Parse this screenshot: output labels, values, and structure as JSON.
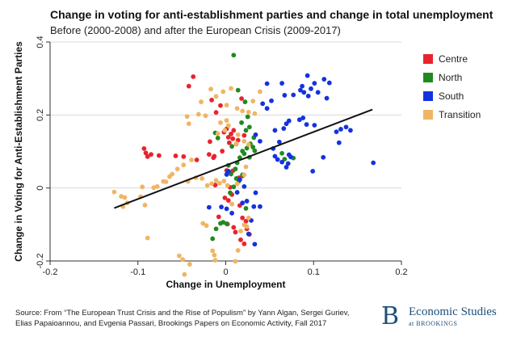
{
  "header": {
    "title": "Change in voting for anti-establishment parties and change in total unemployment",
    "subtitle": "Before (2000-2008) and after the European Crisis (2009-2017)"
  },
  "footer": {
    "source_line1": "Source: From “The European Trust Crisis and the Rise of Populism” by Yann Algan, Sergei Guriev,",
    "source_line2": "Elias Papaioannou, and Evgenia Passari, Brookings Papers on Economic Activity, Fall 2017",
    "brand_mark": "B",
    "brand_name": "Economic Studies",
    "brand_sub": "at BROOKINGS"
  },
  "chart_data": {
    "type": "scatter",
    "xlabel": "Change in Unemployment",
    "ylabel": "Change in Voting for Anti-Establishment Parties",
    "xlim": [
      -0.2,
      0.2
    ],
    "ylim": [
      -0.2,
      0.4
    ],
    "xticks": [
      "-0.2",
      "-0.1",
      "0",
      "0.1",
      "0.2"
    ],
    "yticks": [
      "-0.2",
      "0",
      "0.2",
      "0.4"
    ],
    "grid": true,
    "legend_position": "right",
    "fit_line": {
      "x": [
        -0.127,
        0.167
      ],
      "y": [
        -0.055,
        0.215
      ],
      "color": "#111111"
    },
    "series": [
      {
        "name": "Centre",
        "color": "#e8232e",
        "points": [
          [
            -0.093,
            0.108
          ],
          [
            -0.091,
            0.096
          ],
          [
            -0.089,
            0.086
          ],
          [
            -0.085,
            0.092
          ],
          [
            -0.076,
            0.089
          ],
          [
            -0.057,
            0.088
          ],
          [
            -0.048,
            0.086
          ],
          [
            -0.033,
            0.077
          ],
          [
            -0.019,
            0.092
          ],
          [
            -0.018,
            0.127
          ],
          [
            -0.014,
            0.083
          ],
          [
            -0.013,
            0.087
          ],
          [
            -0.037,
            0.305
          ],
          [
            -0.042,
            0.279
          ],
          [
            -0.016,
            0.241
          ],
          [
            -0.011,
            0.207
          ],
          [
            -0.006,
            0.226
          ],
          [
            -0.002,
            0.153
          ],
          [
            0.001,
            0.162
          ],
          [
            0.003,
            0.139
          ],
          [
            0.004,
            0.124
          ],
          [
            0.006,
            0.148
          ],
          [
            0.008,
            0.135
          ],
          [
            0.009,
            0.158
          ],
          [
            0.012,
            0.121
          ],
          [
            0.014,
            0.131
          ],
          [
            0.018,
            0.245
          ],
          [
            0.021,
            0.144
          ],
          [
            0.008,
            0.047
          ],
          [
            0.015,
            0.028
          ],
          [
            0.019,
            0.033
          ],
          [
            -0.001,
            -0.027
          ],
          [
            0.003,
            -0.034
          ],
          [
            0.007,
            -0.018
          ],
          [
            0.002,
            -0.099
          ],
          [
            0.009,
            -0.108
          ],
          [
            0.011,
            -0.121
          ],
          [
            0.017,
            -0.142
          ],
          [
            0.019,
            -0.082
          ],
          [
            0.023,
            -0.091
          ],
          [
            0.024,
            -0.112
          ],
          [
            0.027,
            -0.127
          ],
          [
            0.021,
            -0.153
          ],
          [
            -0.012,
            0.008
          ],
          [
            0.016,
            -0.048
          ],
          [
            -0.008,
            -0.079
          ],
          [
            0.005,
            0.002
          ],
          [
            0.001,
            0.048
          ],
          [
            -0.004,
            0.101
          ]
        ]
      },
      {
        "name": "North",
        "color": "#1f8a1f",
        "points": [
          [
            0.009,
            0.364
          ],
          [
            0.014,
            0.268
          ],
          [
            0.022,
            0.236
          ],
          [
            0.025,
            0.195
          ],
          [
            0.018,
            0.179
          ],
          [
            0.023,
            0.158
          ],
          [
            0.027,
            0.167
          ],
          [
            0.032,
            0.138
          ],
          [
            0.028,
            0.121
          ],
          [
            0.024,
            0.109
          ],
          [
            0.021,
            0.094
          ],
          [
            0.019,
            0.101
          ],
          [
            0.016,
            0.083
          ],
          [
            0.027,
            0.084
          ],
          [
            0.031,
            0.112
          ],
          [
            0.033,
            0.102
          ],
          [
            0.013,
            0.069
          ],
          [
            0.011,
            0.052
          ],
          [
            0.006,
            0.038
          ],
          [
            0.012,
            0.026
          ],
          [
            0.015,
            0.019
          ],
          [
            0.019,
            0.036
          ],
          [
            0.009,
            0.003
          ],
          [
            0.005,
            -0.013
          ],
          [
            -0.012,
            0.151
          ],
          [
            -0.009,
            0.137
          ],
          [
            0.001,
            -0.098
          ],
          [
            -0.003,
            -0.094
          ],
          [
            -0.006,
            -0.097
          ],
          [
            -0.011,
            -0.112
          ],
          [
            -0.015,
            -0.139
          ],
          [
            0.023,
            -0.056
          ],
          [
            0.064,
            0.095
          ],
          [
            0.067,
            0.079
          ],
          [
            0.077,
            0.082
          ],
          [
            0.003,
            0.062
          ],
          [
            0.007,
            0.114
          ]
        ]
      },
      {
        "name": "South",
        "color": "#1432e0",
        "points": [
          [
            0.093,
            0.308
          ],
          [
            0.112,
            0.298
          ],
          [
            0.118,
            0.288
          ],
          [
            0.101,
            0.287
          ],
          [
            0.087,
            0.279
          ],
          [
            0.064,
            0.287
          ],
          [
            0.047,
            0.286
          ],
          [
            0.085,
            0.268
          ],
          [
            0.089,
            0.262
          ],
          [
            0.094,
            0.252
          ],
          [
            0.097,
            0.272
          ],
          [
            0.105,
            0.262
          ],
          [
            0.115,
            0.246
          ],
          [
            0.077,
            0.255
          ],
          [
            0.067,
            0.254
          ],
          [
            0.052,
            0.239
          ],
          [
            0.047,
            0.218
          ],
          [
            0.042,
            0.231
          ],
          [
            0.088,
            0.192
          ],
          [
            0.084,
            0.187
          ],
          [
            0.101,
            0.172
          ],
          [
            0.092,
            0.174
          ],
          [
            0.072,
            0.184
          ],
          [
            0.069,
            0.176
          ],
          [
            0.066,
            0.163
          ],
          [
            0.131,
            0.161
          ],
          [
            0.137,
            0.167
          ],
          [
            0.142,
            0.158
          ],
          [
            0.126,
            0.154
          ],
          [
            0.129,
            0.124
          ],
          [
            0.061,
            0.126
          ],
          [
            0.056,
            0.158
          ],
          [
            0.034,
            0.146
          ],
          [
            0.039,
            0.128
          ],
          [
            0.054,
            0.108
          ],
          [
            0.056,
            0.087
          ],
          [
            0.059,
            0.078
          ],
          [
            0.064,
            0.071
          ],
          [
            0.071,
            0.067
          ],
          [
            0.069,
            0.057
          ],
          [
            0.074,
            0.085
          ],
          [
            0.072,
            0.091
          ],
          [
            0.099,
            0.046
          ],
          [
            0.111,
            0.084
          ],
          [
            0.168,
            0.069
          ],
          [
            0.003,
            0.046
          ],
          [
            0.001,
            0.037
          ],
          [
            0.016,
            0.023
          ],
          [
            0.013,
            -0.012
          ],
          [
            -0.019,
            -0.053
          ],
          [
            -0.005,
            -0.052
          ],
          [
            0.001,
            -0.057
          ],
          [
            0.007,
            -0.069
          ],
          [
            0.019,
            -0.041
          ],
          [
            0.024,
            -0.036
          ],
          [
            0.032,
            -0.051
          ],
          [
            0.039,
            -0.051
          ],
          [
            0.029,
            -0.089
          ],
          [
            0.033,
            -0.154
          ],
          [
            0.026,
            -0.126
          ],
          [
            0.034,
            -0.013
          ],
          [
            0.021,
            0.004
          ]
        ]
      },
      {
        "name": "Transition",
        "color": "#f0b564",
        "points": [
          [
            -0.003,
            0.264
          ],
          [
            0.006,
            0.273
          ],
          [
            -0.028,
            0.236
          ],
          [
            -0.011,
            0.251
          ],
          [
            -0.044,
            0.196
          ],
          [
            -0.031,
            0.202
          ],
          [
            -0.023,
            0.198
          ],
          [
            0.019,
            0.211
          ],
          [
            0.026,
            0.208
          ],
          [
            0.013,
            0.218
          ],
          [
            0.033,
            0.204
          ],
          [
            -0.042,
            0.176
          ],
          [
            -0.006,
            0.179
          ],
          [
            0.001,
            0.185
          ],
          [
            0.003,
            0.171
          ],
          [
            -0.001,
            0.158
          ],
          [
            -0.009,
            0.149
          ],
          [
            0.012,
            0.122
          ],
          [
            0.014,
            0.146
          ],
          [
            0.021,
            0.128
          ],
          [
            0.026,
            0.119
          ],
          [
            -0.048,
            0.063
          ],
          [
            -0.055,
            0.052
          ],
          [
            -0.039,
            0.077
          ],
          [
            -0.034,
            0.028
          ],
          [
            -0.043,
            0.018
          ],
          [
            -0.027,
            0.026
          ],
          [
            -0.016,
            0.012
          ],
          [
            -0.011,
            0.021
          ],
          [
            -0.007,
            0.013
          ],
          [
            -0.002,
            0.019
          ],
          [
            0.002,
            0.007
          ],
          [
            -0.068,
            0.017
          ],
          [
            -0.064,
            0.031
          ],
          [
            -0.061,
            0.038
          ],
          [
            -0.071,
            0.018
          ],
          [
            -0.095,
            0.003
          ],
          [
            -0.097,
            -0.024
          ],
          [
            -0.092,
            -0.047
          ],
          [
            -0.082,
            0.001
          ],
          [
            -0.078,
            0.004
          ],
          [
            -0.115,
            -0.026
          ],
          [
            -0.119,
            -0.023
          ],
          [
            -0.117,
            -0.051
          ],
          [
            -0.112,
            -0.041
          ],
          [
            -0.127,
            -0.011
          ],
          [
            -0.089,
            -0.137
          ],
          [
            -0.053,
            -0.186
          ],
          [
            -0.049,
            -0.196
          ],
          [
            -0.041,
            -0.209
          ],
          [
            -0.047,
            -0.237
          ],
          [
            -0.015,
            -0.172
          ],
          [
            -0.013,
            -0.184
          ],
          [
            -0.012,
            -0.198
          ],
          [
            0.011,
            -0.201
          ],
          [
            0.014,
            -0.171
          ],
          [
            0.017,
            -0.118
          ],
          [
            0.021,
            -0.101
          ],
          [
            0.024,
            -0.106
          ],
          [
            0.026,
            -0.082
          ],
          [
            0.007,
            -0.044
          ],
          [
            0.013,
            0.011
          ],
          [
            0.023,
            0.058
          ],
          [
            0.021,
            0.036
          ],
          [
            -0.021,
            0.007
          ],
          [
            -0.026,
            -0.097
          ],
          [
            -0.022,
            -0.103
          ],
          [
            0.031,
            0.238
          ],
          [
            0.039,
            0.264
          ],
          [
            0.001,
            0.227
          ],
          [
            -0.017,
            0.271
          ]
        ]
      }
    ]
  }
}
